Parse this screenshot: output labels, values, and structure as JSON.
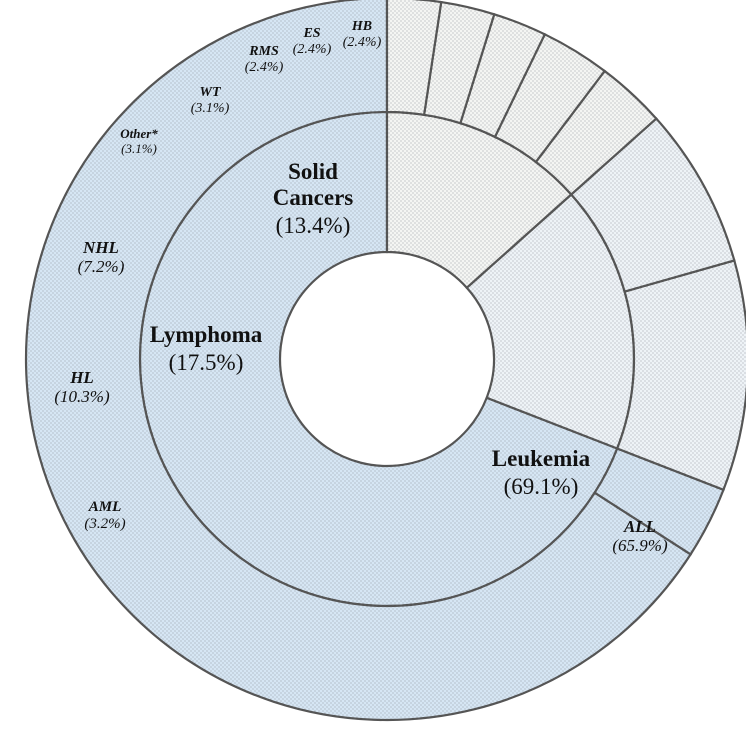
{
  "chart_data": {
    "type": "sunburst",
    "title": "",
    "legend": "none",
    "colors": {
      "leukemia": "#d6e6f4",
      "lymphoma": "#eef3f7",
      "solid": "#f4f5f3",
      "stroke": "#555555"
    },
    "inner": [
      {
        "key": "leukemia",
        "name": "Leukemia",
        "value": 69.1,
        "label": "(69.1%)"
      },
      {
        "key": "lymphoma",
        "name": "Lymphoma",
        "value": 17.5,
        "label": "(17.5%)"
      },
      {
        "key": "solid",
        "name_lines": [
          "Solid",
          "Cancers"
        ],
        "value": 13.4,
        "label": "(13.4%)"
      }
    ],
    "outer": [
      {
        "group": "leukemia",
        "name": "ALL",
        "value": 65.9,
        "label": "(65.9%)"
      },
      {
        "group": "leukemia",
        "name": "AML",
        "value": 3.2,
        "label": "(3.2%)"
      },
      {
        "group": "lymphoma",
        "name": "HL",
        "value": 10.3,
        "label": "(10.3%)"
      },
      {
        "group": "lymphoma",
        "name": "NHL",
        "value": 7.2,
        "label": "(7.2%)"
      },
      {
        "group": "solid",
        "name": "Other*",
        "value": 3.1,
        "label": "(3.1%)"
      },
      {
        "group": "solid",
        "name": "WT",
        "value": 3.1,
        "label": "(3.1%)"
      },
      {
        "group": "solid",
        "name": "RMS",
        "value": 2.4,
        "label": "(2.4%)"
      },
      {
        "group": "solid",
        "name": "ES",
        "value": 2.4,
        "label": "(2.4%)"
      },
      {
        "group": "solid",
        "name": "HB",
        "value": 2.4,
        "label": "(2.4%)"
      }
    ]
  }
}
